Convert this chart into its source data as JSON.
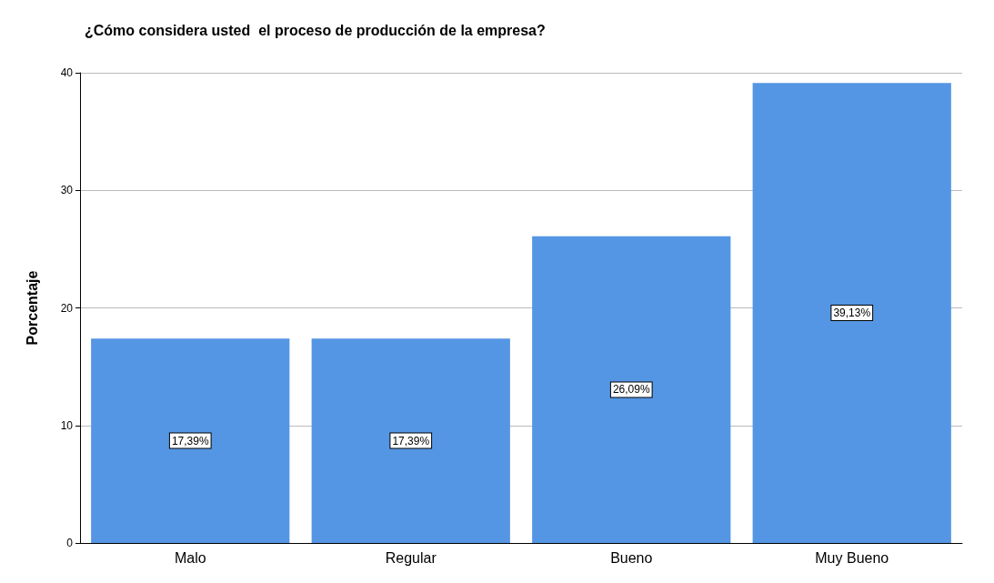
{
  "chart_data": {
    "type": "bar",
    "title": "¿Cómo considera usted  el proceso de producción de la empresa?",
    "ylabel": "Porcentaje",
    "categories": [
      "Malo",
      "Regular",
      "Bueno",
      "Muy Bueno"
    ],
    "values": [
      17.39,
      17.39,
      26.09,
      39.13
    ],
    "value_labels": [
      "17,39%",
      "17,39%",
      "26,09%",
      "39,13%"
    ],
    "color": "#5596e4",
    "ylim": [
      0,
      40
    ],
    "yticks": [
      0,
      10,
      20,
      30,
      40
    ],
    "grid": "y"
  }
}
